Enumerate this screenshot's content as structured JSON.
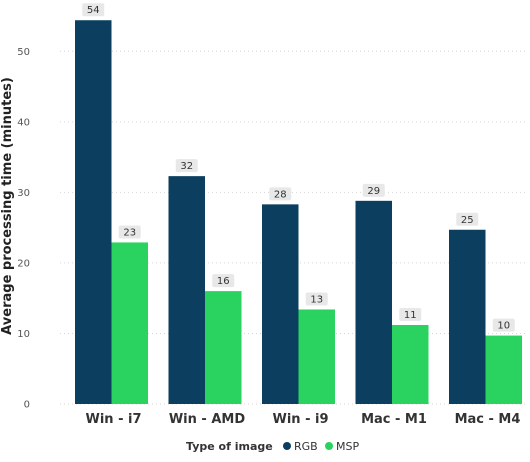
{
  "chart_data": {
    "type": "bar",
    "ylabel": "Average processing time (minutes)",
    "legend_title": "Type of image",
    "legend_position": "bottom-center",
    "grid": true,
    "ylim": [
      0,
      55
    ],
    "yticks": [
      0,
      10,
      20,
      30,
      40,
      50
    ],
    "categories": [
      "Win - i7",
      "Win - AMD",
      "Win - i9",
      "Mac - M1",
      "Mac - M4"
    ],
    "series": [
      {
        "name": "RGB",
        "color": "#0c3f5f",
        "values": [
          54.4,
          32.3,
          28.3,
          28.8,
          24.7
        ],
        "labels": [
          "54",
          "32",
          "28",
          "29",
          "25"
        ]
      },
      {
        "name": "MSP",
        "color": "#2ad360",
        "values": [
          22.9,
          16.0,
          13.4,
          11.2,
          9.7
        ],
        "labels": [
          "23",
          "16",
          "13",
          "11",
          "10"
        ]
      }
    ]
  }
}
